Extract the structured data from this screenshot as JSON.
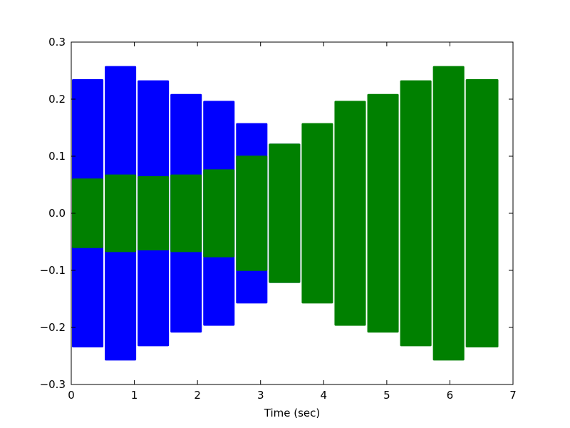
{
  "chart_data": {
    "type": "bar",
    "title": "",
    "xlabel": "Time (sec)",
    "ylabel": "",
    "xlim": [
      0,
      7
    ],
    "ylim": [
      -0.3,
      0.3
    ],
    "xticks": [
      "0",
      "1",
      "2",
      "3",
      "4",
      "5",
      "6",
      "7"
    ],
    "yticks": [
      "−0.3",
      "−0.2",
      "−0.1",
      "0.0",
      "0.1",
      "0.2",
      "0.3"
    ],
    "grid": false,
    "description_of_encoding": "each segment is a symmetric amplitude envelope around 0 spanning the time interval [start, end]",
    "segments": [
      {
        "start": 0.0,
        "end": 0.52
      },
      {
        "start": 0.52,
        "end": 1.04
      },
      {
        "start": 1.04,
        "end": 1.56
      },
      {
        "start": 1.56,
        "end": 2.08
      },
      {
        "start": 2.08,
        "end": 2.6
      },
      {
        "start": 2.6,
        "end": 3.12
      },
      {
        "start": 3.12,
        "end": 3.64
      },
      {
        "start": 3.64,
        "end": 4.16
      },
      {
        "start": 4.16,
        "end": 4.68
      },
      {
        "start": 4.68,
        "end": 5.2
      },
      {
        "start": 5.2,
        "end": 5.72
      },
      {
        "start": 5.72,
        "end": 6.24
      },
      {
        "start": 6.24,
        "end": 6.78
      }
    ],
    "series": [
      {
        "color": "#0000ff",
        "values": [
          0.235,
          0.258,
          0.233,
          0.209,
          0.197,
          0.158,
          0.122,
          0.0,
          0.0,
          0.0,
          0.0,
          0.0,
          0.0
        ]
      },
      {
        "color": "#008000",
        "values": [
          0.061,
          0.068,
          0.065,
          0.068,
          0.077,
          0.101,
          0.122,
          0.158,
          0.197,
          0.209,
          0.233,
          0.258,
          0.235
        ]
      }
    ]
  }
}
